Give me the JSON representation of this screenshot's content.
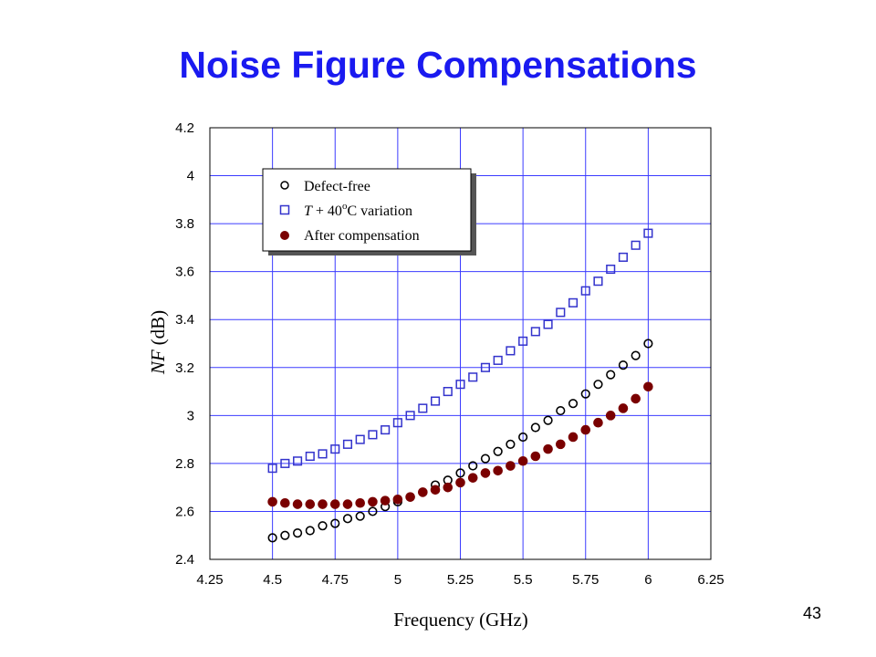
{
  "slide": {
    "title": "Noise Figure Compensations",
    "page_number": "43"
  },
  "colors": {
    "title": "#1a1af0",
    "grid": "#3b3bff",
    "defect_free": "#000000",
    "temperature_variation": "#3333cc",
    "after_compensation": "#7a0000"
  },
  "chart_data": {
    "type": "scatter",
    "title": "",
    "xlabel": "Frequency (GHz)",
    "ylabel_italic": "NF",
    "ylabel_unit": "(dB)",
    "xlim": [
      4.25,
      6.25
    ],
    "ylim": [
      2.4,
      4.2
    ],
    "x_ticks": [
      "4.25",
      "4.5",
      "4.75",
      "5",
      "5.25",
      "5.5",
      "5.75",
      "6",
      "6.25"
    ],
    "y_ticks": [
      "2.4",
      "2.6",
      "2.8",
      "3",
      "3.2",
      "3.4",
      "3.6",
      "3.8",
      "4",
      "4.2"
    ],
    "grid": true,
    "legend_position": "top-left",
    "legend": {
      "defect_free": "Defect-free",
      "temp_italic": "T",
      "temp_middle": " + 40",
      "temp_degree": "o",
      "temp_end": "C variation",
      "after_compensation": "After compensation"
    },
    "x": [
      4.5,
      4.55,
      4.6,
      4.65,
      4.7,
      4.75,
      4.8,
      4.85,
      4.9,
      4.95,
      5.0,
      5.05,
      5.1,
      5.15,
      5.2,
      5.25,
      5.3,
      5.35,
      5.4,
      5.45,
      5.5,
      5.55,
      5.6,
      5.65,
      5.7,
      5.75,
      5.8,
      5.85,
      5.9,
      5.95,
      6.0
    ],
    "series": [
      {
        "name": "Defect-free",
        "marker": "open-circle",
        "values": [
          2.49,
          2.5,
          2.51,
          2.52,
          2.54,
          2.55,
          2.57,
          2.58,
          2.6,
          2.62,
          2.64,
          2.66,
          2.68,
          2.71,
          2.73,
          2.76,
          2.79,
          2.82,
          2.85,
          2.88,
          2.91,
          2.95,
          2.98,
          3.02,
          3.05,
          3.09,
          3.13,
          3.17,
          3.21,
          3.25,
          3.3
        ]
      },
      {
        "name": "T + 40°C variation",
        "marker": "open-square",
        "values": [
          2.78,
          2.8,
          2.81,
          2.83,
          2.84,
          2.86,
          2.88,
          2.9,
          2.92,
          2.94,
          2.97,
          3.0,
          3.03,
          3.06,
          3.1,
          3.13,
          3.16,
          3.2,
          3.23,
          3.27,
          3.31,
          3.35,
          3.38,
          3.43,
          3.47,
          3.52,
          3.56,
          3.61,
          3.66,
          3.71,
          3.76
        ]
      },
      {
        "name": "After compensation",
        "marker": "filled-circle",
        "values": [
          2.64,
          2.635,
          2.63,
          2.63,
          2.63,
          2.63,
          2.63,
          2.635,
          2.64,
          2.645,
          2.65,
          2.66,
          2.68,
          2.69,
          2.7,
          2.72,
          2.74,
          2.76,
          2.77,
          2.79,
          2.81,
          2.83,
          2.86,
          2.88,
          2.91,
          2.94,
          2.97,
          3.0,
          3.03,
          3.07,
          3.12
        ]
      }
    ]
  }
}
